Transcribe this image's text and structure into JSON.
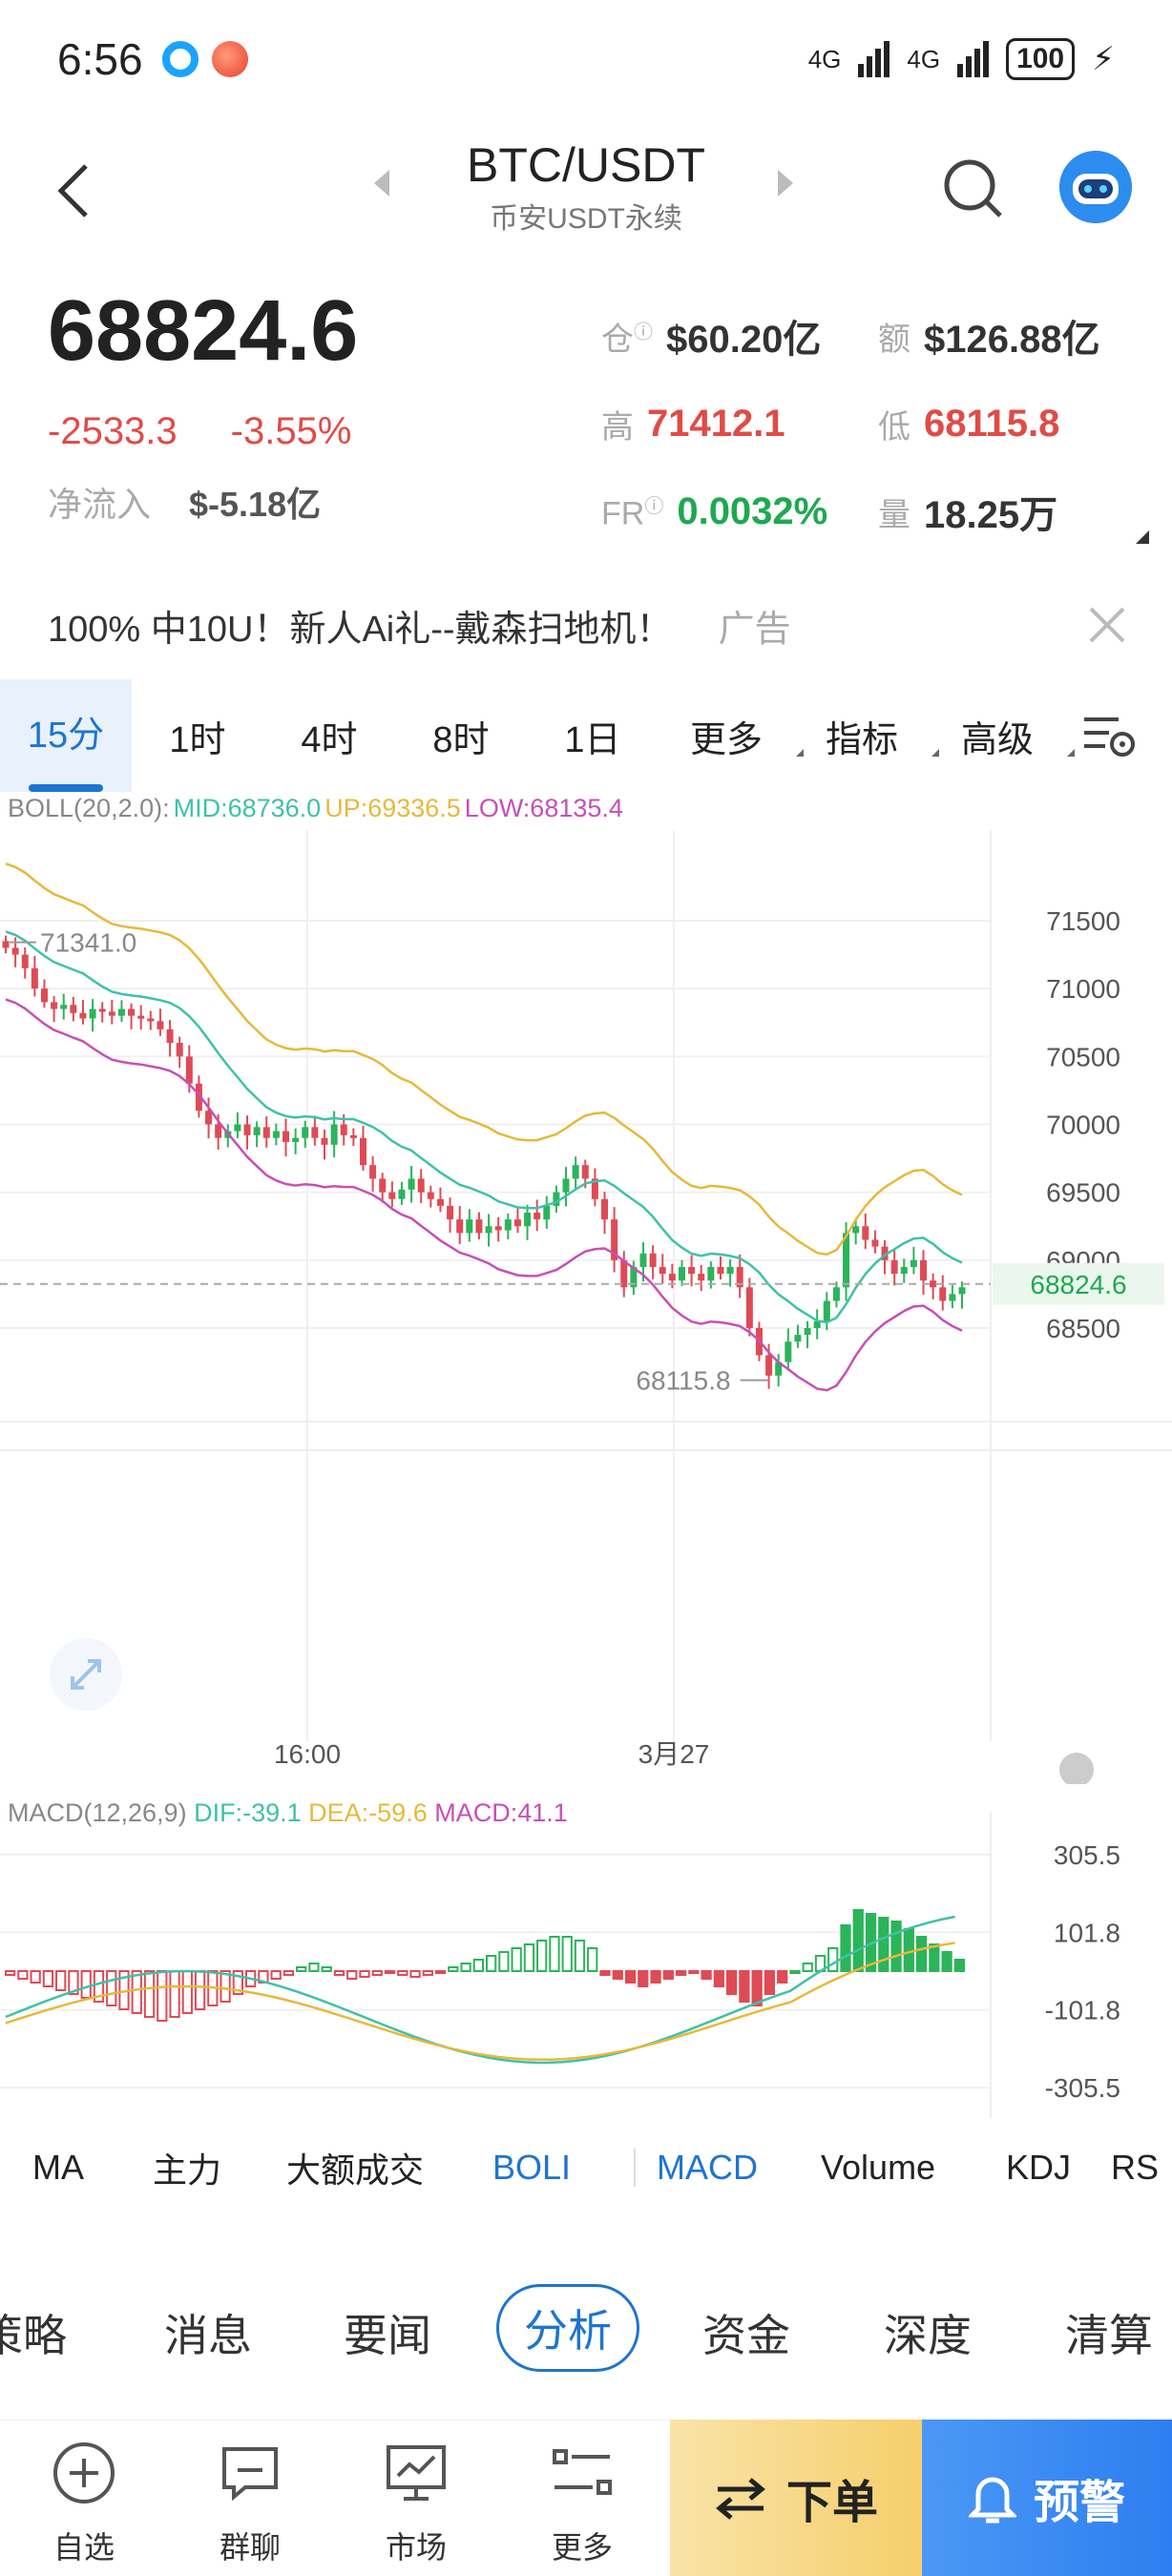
{
  "status_bar": {
    "time": "6:56",
    "network_1": "4G",
    "network_2": "4G",
    "battery": "100"
  },
  "header": {
    "title": "BTC/USDT",
    "subtitle": "币安USDT永续"
  },
  "ticker": {
    "price": "68824.6",
    "change_abs": "-2533.3",
    "change_pct": "-3.55%",
    "netflow_label": "净流入",
    "netflow_value": "$-5.18亿",
    "stats": {
      "open_interest_label": "仓",
      "open_interest_value": "$60.20亿",
      "turnover_label": "额",
      "turnover_value": "$126.88亿",
      "high_label": "高",
      "high_value": "71412.1",
      "low_label": "低",
      "low_value": "68115.8",
      "fr_label": "FR",
      "fr_value": "0.0032%",
      "volume_label": "量",
      "volume_value": "18.25万"
    }
  },
  "ad": {
    "text": "100% 中10U！新人Ai礼--戴森扫地机！",
    "tag": "广告"
  },
  "timeframes": [
    "15分",
    "1时",
    "4时",
    "8时",
    "1日",
    "更多",
    "指标",
    "高级"
  ],
  "boll_legend": {
    "name": "BOLL(20,2.0):",
    "mid": "MID:68736.0",
    "up": "UP:69336.5",
    "low": "LOW:68135.4"
  },
  "macd_legend": {
    "name": "MACD(12,26,9)",
    "dif": "DIF:-39.1",
    "dea": "DEA:-59.6",
    "macd": "MACD:41.1"
  },
  "chart_data": {
    "type": "candlestick",
    "price_axis_ticks": [
      "71500",
      "71000",
      "70500",
      "70000",
      "69500",
      "69000",
      "68500"
    ],
    "time_axis_ticks": [
      "16:00",
      "3月27"
    ],
    "last_price_label": "68824.6",
    "high_marker": "71341.0",
    "low_marker": "68115.8",
    "macd_axis_ticks": [
      "305.5",
      "101.8",
      "-101.8",
      "-305.5"
    ],
    "colors": {
      "up": "#2bb45a",
      "down": "#de4b55",
      "mid": "#3fc1a8",
      "upper": "#e8b83a",
      "lower": "#c84fb6"
    }
  },
  "indicator_tabs": [
    "MA",
    "主力",
    "大额成交",
    "BOLI",
    "MACD",
    "Volume",
    "KDJ",
    "RSI"
  ],
  "content_tabs": [
    "策略",
    "消息",
    "要闻",
    "分析",
    "资金",
    "深度",
    "清算"
  ],
  "bottom_nav": {
    "watchlist": "自选",
    "group_chat": "群聊",
    "market": "市场",
    "more": "更多",
    "order": "下单",
    "alert": "预警"
  }
}
